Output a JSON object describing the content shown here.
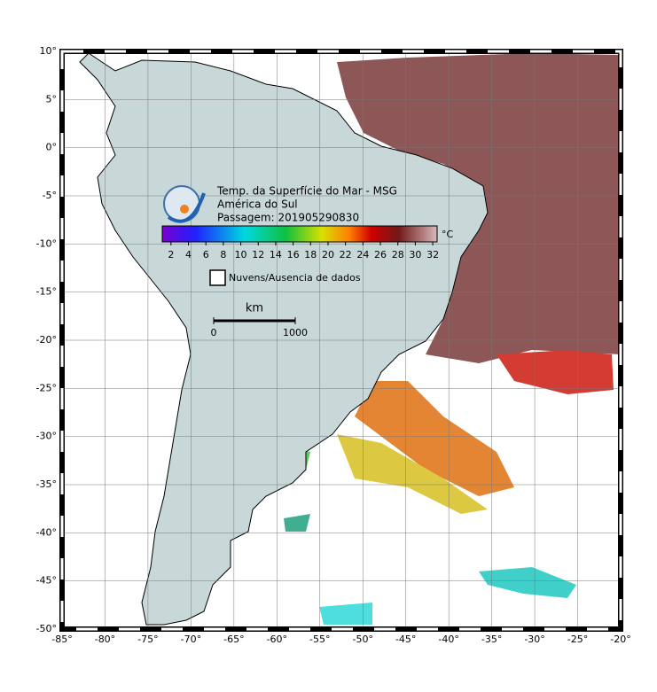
{
  "map": {
    "xlim": [
      -85,
      -20
    ],
    "ylim": [
      -50,
      10
    ],
    "xticks": [
      {
        "value": -85,
        "label": "-85°"
      },
      {
        "value": -80,
        "label": "-80°"
      },
      {
        "value": -75,
        "label": "-75°"
      },
      {
        "value": -70,
        "label": "-70°"
      },
      {
        "value": -65,
        "label": "-65°"
      },
      {
        "value": -60,
        "label": "-60°"
      },
      {
        "value": -55,
        "label": "-55°"
      },
      {
        "value": -50,
        "label": "-50°"
      },
      {
        "value": -45,
        "label": "-45°"
      },
      {
        "value": -40,
        "label": "-40°"
      },
      {
        "value": -35,
        "label": "-35°"
      },
      {
        "value": -30,
        "label": "-30°"
      },
      {
        "value": -25,
        "label": "-25°"
      },
      {
        "value": -20,
        "label": "-20°"
      }
    ],
    "yticks": [
      {
        "value": 10,
        "label": "10°"
      },
      {
        "value": 5,
        "label": "5°"
      },
      {
        "value": 0,
        "label": "0°"
      },
      {
        "value": -5,
        "label": "-5°"
      },
      {
        "value": -10,
        "label": "-10°"
      },
      {
        "value": -15,
        "label": "-15°"
      },
      {
        "value": -20,
        "label": "-20°"
      },
      {
        "value": -25,
        "label": "-25°"
      },
      {
        "value": -30,
        "label": "-30°"
      },
      {
        "value": -35,
        "label": "-35°"
      },
      {
        "value": -40,
        "label": "-40°"
      },
      {
        "value": -45,
        "label": "-45°"
      },
      {
        "value": -50,
        "label": "-50°"
      }
    ]
  },
  "title": [
    "Temp. da Superfície do Mar - MSG",
    "América do Sul",
    "Passagem: 201905290830"
  ],
  "colorbar": {
    "unit": "°C",
    "range": [
      1,
      32.5
    ],
    "ticks": [
      2,
      4,
      6,
      8,
      10,
      12,
      14,
      16,
      18,
      20,
      22,
      24,
      26,
      28,
      30,
      32
    ]
  },
  "legend": "Nuvens/Ausencia de dados",
  "scale": {
    "unit": "km",
    "ticks": [
      0,
      1000
    ]
  }
}
